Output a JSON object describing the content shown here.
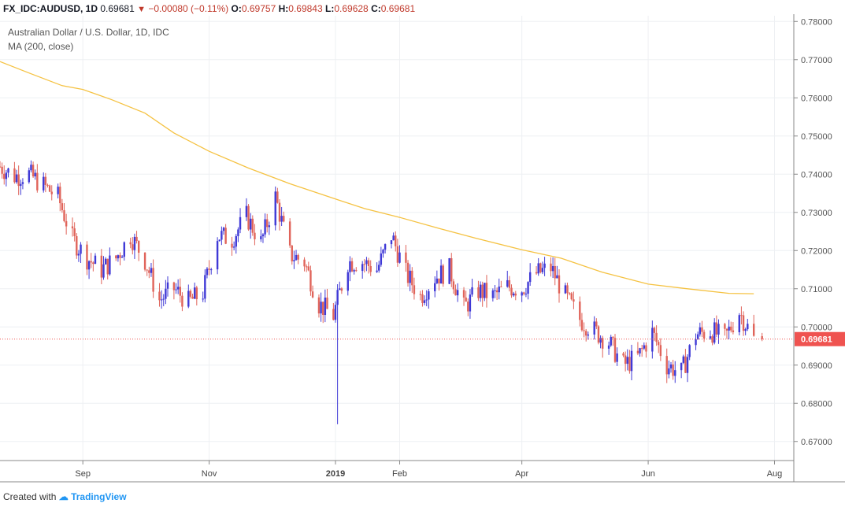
{
  "header": {
    "symbol": "FX_IDC:AUDUSD, 1D",
    "last": "0.69681",
    "change": "−0.00080 (−0.11%)",
    "o_label": "O:",
    "o": "0.69757",
    "h_label": "H:",
    "h": "0.69843",
    "l_label": "L:",
    "l": "0.69628",
    "c_label": "C:",
    "c": "0.69681"
  },
  "legend": {
    "title": "Australian Dollar / U.S. Dollar, 1D, IDC",
    "ma": "MA (200, close)"
  },
  "footer": {
    "created_with": "Created with",
    "brand": "TradingView"
  },
  "colors": {
    "up": "#3f39d6",
    "down": "#e0645a",
    "ma": "#f5c242",
    "price_label": "#ef5350"
  },
  "chart_data": {
    "type": "candlestick",
    "title": "Australian Dollar / U.S. Dollar, 1D, IDC",
    "ylim": [
      0.665,
      0.7815
    ],
    "y_ticks": [
      "0.78000",
      "0.77000",
      "0.76000",
      "0.75000",
      "0.74000",
      "0.73000",
      "0.72000",
      "0.71000",
      "0.70000",
      "0.69000",
      "0.68000",
      "0.67000"
    ],
    "x_ticks": [
      {
        "label": "Sep",
        "date": "2018-09-01"
      },
      {
        "label": "Nov",
        "date": "2018-11-01"
      },
      {
        "label": "2019",
        "date": "2019-01-01",
        "bold": true
      },
      {
        "label": "Feb",
        "date": "2019-02-01"
      },
      {
        "label": "Apr",
        "date": "2019-04-01"
      },
      {
        "label": "Jun",
        "date": "2019-06-01"
      },
      {
        "label": "Aug",
        "date": "2019-08-01"
      }
    ],
    "date_range": [
      "2018-07-23",
      "2019-08-05"
    ],
    "last_price": 0.69681,
    "last_price_label": "0.69681",
    "ma200_points": [
      [
        "2018-07-23",
        0.7695
      ],
      [
        "2018-08-06",
        0.7665
      ],
      [
        "2018-08-22",
        0.7632
      ],
      [
        "2018-09-01",
        0.7622
      ],
      [
        "2018-09-15",
        0.7595
      ],
      [
        "2018-10-01",
        0.756
      ],
      [
        "2018-10-15",
        0.7508
      ],
      [
        "2018-11-01",
        0.746
      ],
      [
        "2018-11-20",
        0.7416
      ],
      [
        "2018-12-10",
        0.7375
      ],
      [
        "2019-01-01",
        0.7335
      ],
      [
        "2019-01-15",
        0.731
      ],
      [
        "2019-02-01",
        0.7287
      ],
      [
        "2019-02-20",
        0.7258
      ],
      [
        "2019-03-10",
        0.7232
      ],
      [
        "2019-04-01",
        0.7202
      ],
      [
        "2019-04-20",
        0.718
      ],
      [
        "2019-05-10",
        0.7143
      ],
      [
        "2019-06-01",
        0.7112
      ],
      [
        "2019-06-20",
        0.71
      ],
      [
        "2019-07-10",
        0.7088
      ],
      [
        "2019-07-22",
        0.7087
      ]
    ],
    "daily_closes": [
      [
        "2018-07-23",
        0.742
      ],
      [
        "2018-07-30",
        0.7395
      ],
      [
        "2018-08-06",
        0.74
      ],
      [
        "2018-08-13",
        0.737
      ],
      [
        "2018-08-20",
        0.734
      ],
      [
        "2018-08-27",
        0.723
      ],
      [
        "2018-09-03",
        0.718
      ],
      [
        "2018-09-10",
        0.715
      ],
      [
        "2018-09-17",
        0.718
      ],
      [
        "2018-09-24",
        0.724
      ],
      [
        "2018-10-01",
        0.7175
      ],
      [
        "2018-10-08",
        0.707
      ],
      [
        "2018-10-15",
        0.71
      ],
      [
        "2018-10-22",
        0.7065
      ],
      [
        "2018-10-29",
        0.709
      ],
      [
        "2018-11-05",
        0.724
      ],
      [
        "2018-11-12",
        0.723
      ],
      [
        "2018-11-19",
        0.729
      ],
      [
        "2018-11-26",
        0.722
      ],
      [
        "2018-12-03",
        0.734
      ],
      [
        "2018-12-10",
        0.719
      ],
      [
        "2018-12-17",
        0.717
      ],
      [
        "2018-12-24",
        0.706
      ],
      [
        "2018-12-31",
        0.703
      ],
      [
        "2019-01-07",
        0.717
      ],
      [
        "2019-01-14",
        0.717
      ],
      [
        "2019-01-21",
        0.715
      ],
      [
        "2019-01-28",
        0.724
      ],
      [
        "2019-02-04",
        0.714
      ],
      [
        "2019-02-11",
        0.708
      ],
      [
        "2019-02-18",
        0.713
      ],
      [
        "2019-02-25",
        0.715
      ],
      [
        "2019-03-04",
        0.705
      ],
      [
        "2019-03-11",
        0.7095
      ],
      [
        "2019-03-18",
        0.708
      ],
      [
        "2019-03-25",
        0.7105
      ],
      [
        "2019-04-01",
        0.71
      ],
      [
        "2019-04-08",
        0.714
      ],
      [
        "2019-04-15",
        0.7155
      ],
      [
        "2019-04-22",
        0.708
      ],
      [
        "2019-04-29",
        0.702
      ],
      [
        "2019-05-06",
        0.699
      ],
      [
        "2019-05-13",
        0.696
      ],
      [
        "2019-05-20",
        0.69
      ],
      [
        "2019-05-27",
        0.692
      ],
      [
        "2019-06-03",
        0.6985
      ],
      [
        "2019-06-10",
        0.69
      ],
      [
        "2019-06-17",
        0.688
      ],
      [
        "2019-06-24",
        0.698
      ],
      [
        "2019-07-01",
        0.699
      ],
      [
        "2019-07-08",
        0.697
      ],
      [
        "2019-07-15",
        0.704
      ],
      [
        "2019-07-22",
        0.6968
      ]
    ]
  }
}
